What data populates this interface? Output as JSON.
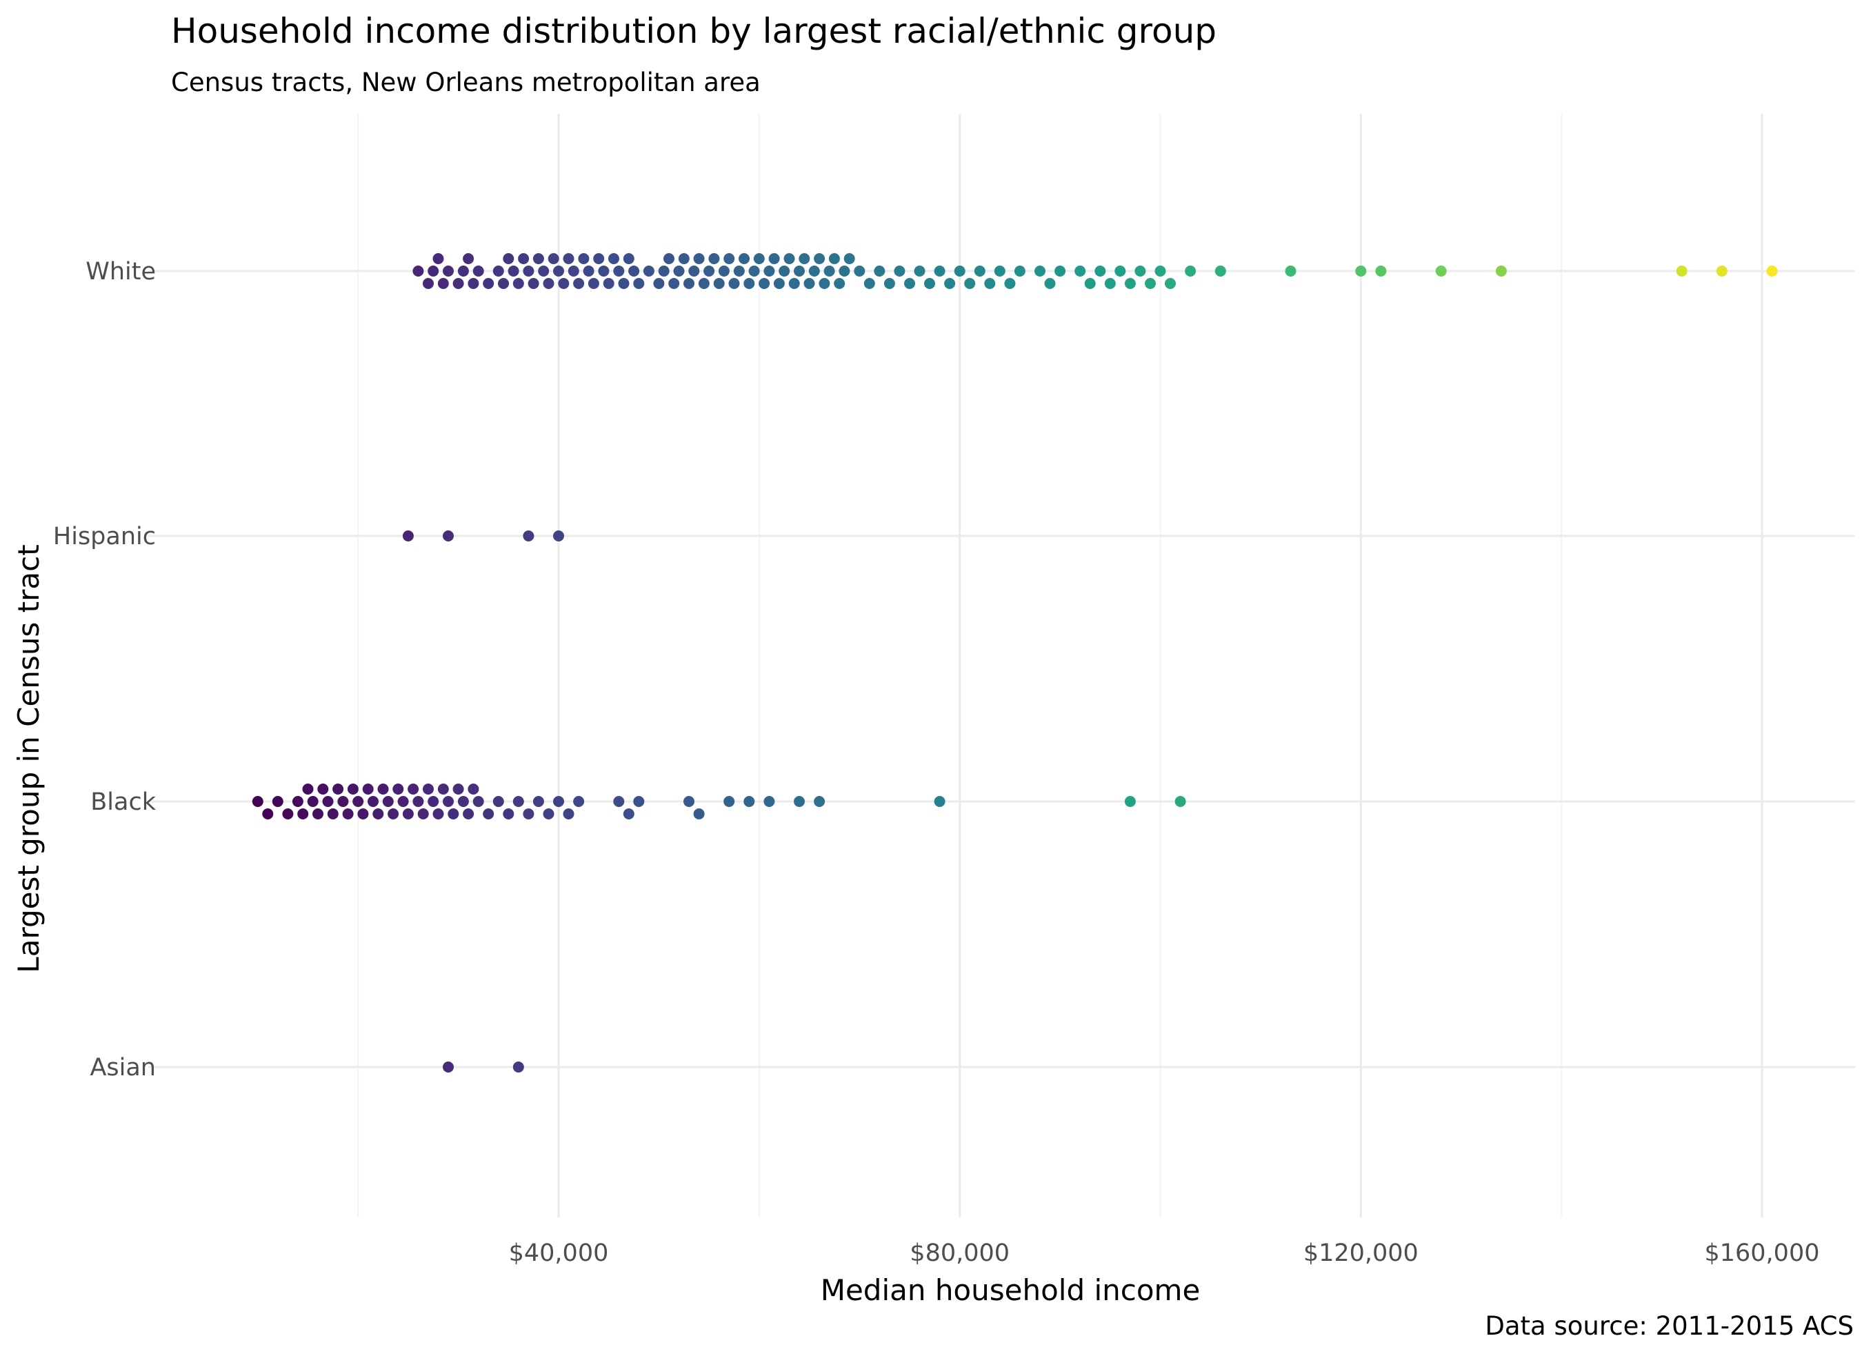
{
  "chart_data": {
    "type": "scatter",
    "subtype": "beeswarm",
    "title": "Household income distribution by largest racial/ethnic group",
    "subtitle": "Census tracts, New Orleans metropolitan area",
    "xlabel": "Median household income",
    "ylabel": "Largest group in Census tract",
    "caption": "Data source: 2011-2015 ACS",
    "x_ticks": [
      40000,
      80000,
      120000,
      160000
    ],
    "x_tick_labels": [
      "$40,000",
      "$80,000",
      "$120,000",
      "$160,000"
    ],
    "xlim": [
      0,
      168000
    ],
    "categories": [
      "White",
      "Hispanic",
      "Black",
      "Asian"
    ],
    "color_scale": "viridis",
    "color_range": [
      10000,
      162000
    ],
    "grid": true,
    "legend": "none",
    "series": [
      {
        "name": "White",
        "x": [
          26000,
          27000,
          27500,
          28000,
          28500,
          29000,
          30000,
          30500,
          31000,
          31500,
          32000,
          33000,
          34000,
          34500,
          35000,
          35500,
          36000,
          36500,
          37000,
          37500,
          38000,
          38500,
          39000,
          39500,
          40000,
          40500,
          41000,
          41500,
          42000,
          42500,
          43000,
          43500,
          44000,
          44500,
          45000,
          45500,
          46000,
          46500,
          47000,
          47500,
          48000,
          49000,
          50000,
          50500,
          51000,
          51500,
          52000,
          52500,
          53000,
          53500,
          54000,
          54500,
          55000,
          55500,
          56000,
          56500,
          57000,
          57500,
          58000,
          58500,
          59000,
          59500,
          60000,
          60500,
          61000,
          61500,
          62000,
          62500,
          63000,
          63500,
          64000,
          64500,
          65000,
          65500,
          66000,
          66500,
          67000,
          67500,
          68000,
          68500,
          69000,
          70000,
          71000,
          72000,
          73000,
          74000,
          75000,
          76000,
          77000,
          78000,
          79000,
          80000,
          81000,
          82000,
          83000,
          84000,
          85000,
          86000,
          88000,
          89000,
          90000,
          92000,
          93000,
          94000,
          95000,
          96000,
          97000,
          98000,
          99000,
          100000,
          101000,
          103000,
          106000,
          113000,
          120000,
          122000,
          128000,
          134000,
          152000,
          156000,
          161000
        ],
        "y": [
          0,
          0,
          0,
          0,
          0,
          0,
          0,
          0,
          0,
          0,
          0,
          0,
          0,
          0,
          0,
          0,
          0,
          0,
          0,
          0,
          0,
          0,
          0,
          0,
          0,
          0,
          0,
          0,
          0,
          0,
          0,
          0,
          0,
          0,
          0,
          0,
          0,
          0,
          0,
          0,
          0,
          0,
          0,
          0,
          0,
          0,
          0,
          0,
          0,
          0,
          0,
          0,
          0,
          0,
          0,
          0,
          0,
          0,
          0,
          0,
          0,
          0,
          0,
          0,
          0,
          0,
          0,
          0,
          0,
          0,
          0,
          0,
          0,
          0,
          0,
          0,
          0,
          0,
          0,
          0,
          0,
          0,
          0,
          0,
          0,
          0,
          0,
          0,
          0,
          0,
          0,
          0,
          0,
          0,
          0,
          0,
          0,
          0,
          0,
          0,
          0,
          0,
          0,
          0,
          0,
          0,
          0,
          0,
          0,
          0,
          0,
          0,
          0,
          0,
          0,
          0,
          0,
          0,
          0,
          0,
          0
        ]
      },
      {
        "name": "Hispanic",
        "x": [
          25000,
          29000,
          37000,
          40000
        ],
        "y": [
          0,
          0,
          0,
          0
        ]
      },
      {
        "name": "Black",
        "x": [
          10000,
          11000,
          12000,
          13000,
          14000,
          14500,
          15000,
          15500,
          16000,
          16500,
          17000,
          17500,
          18000,
          18500,
          19000,
          19500,
          20000,
          20500,
          21000,
          21500,
          22000,
          22500,
          23000,
          23500,
          24000,
          24500,
          25000,
          25500,
          26000,
          26500,
          27000,
          27500,
          28000,
          28500,
          29000,
          29500,
          30000,
          30500,
          31000,
          31500,
          32000,
          33000,
          34000,
          35000,
          36000,
          37000,
          38000,
          39000,
          40000,
          41000,
          42000,
          46000,
          47000,
          48000,
          53000,
          54000,
          57000,
          59000,
          61000,
          64000,
          66000,
          78000,
          97000,
          102000
        ],
        "y": [
          0,
          0,
          0,
          0,
          0,
          0,
          0,
          0,
          0,
          0,
          0,
          0,
          0,
          0,
          0,
          0,
          0,
          0,
          0,
          0,
          0,
          0,
          0,
          0,
          0,
          0,
          0,
          0,
          0,
          0,
          0,
          0,
          0,
          0,
          0,
          0,
          0,
          0,
          0,
          0,
          0,
          0,
          0,
          0,
          0,
          0,
          0,
          0,
          0,
          0,
          0,
          0,
          0,
          0,
          0,
          0,
          0,
          0,
          0,
          0,
          0,
          0,
          0,
          0
        ]
      },
      {
        "name": "Asian",
        "x": [
          29000,
          36000
        ],
        "y": [
          0,
          0
        ]
      }
    ]
  }
}
